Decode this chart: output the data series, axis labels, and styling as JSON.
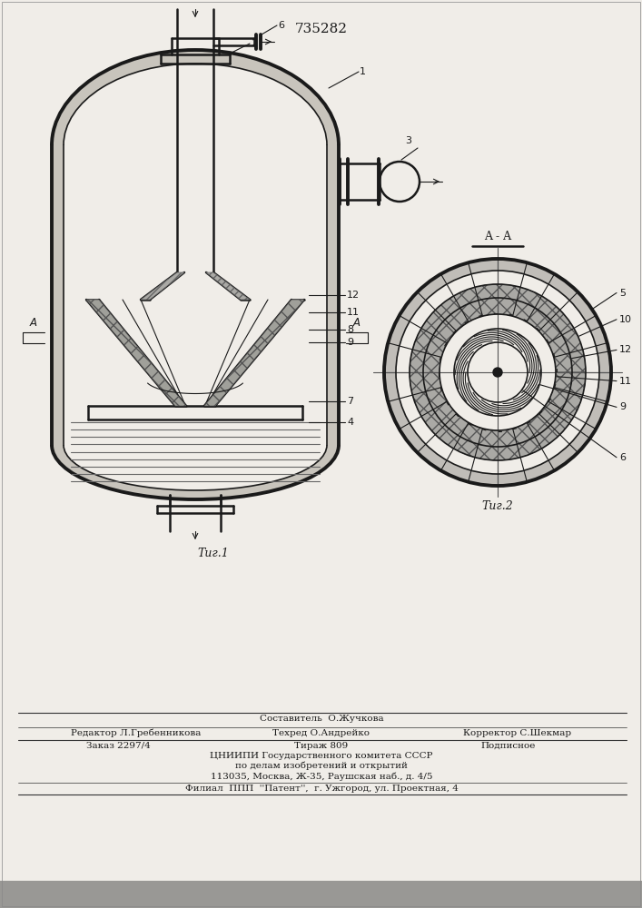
{
  "patent_number": "735282",
  "bg_color": "#f0ede8",
  "line_color": "#1a1a1a",
  "fig1_caption": "Τиг.1",
  "fig2_caption": "Τиг.2",
  "section_label": "A - A",
  "footer_line0": "Составитель  О.Жучкова",
  "footer_line1a": "Редактор Л.Гребенникова",
  "footer_line1b": "Техред О.Андрейко",
  "footer_line1c": "Корректор С.Шекмар",
  "footer_line2a": "Заказ 2297/4",
  "footer_line2b": "Тираж 809",
  "footer_line2c": "Подписное",
  "footer_line3": "ЦНИИПИ Государственного комитета СССР",
  "footer_line4": "по делам изобретений и открытий",
  "footer_line5": "113035, Москва, Ж-35, Раушская наб., д. 4/5",
  "footer_line6": "Филиал  ППП  ''Патент'',  г. Ужгород, ул. Проектная, 4"
}
